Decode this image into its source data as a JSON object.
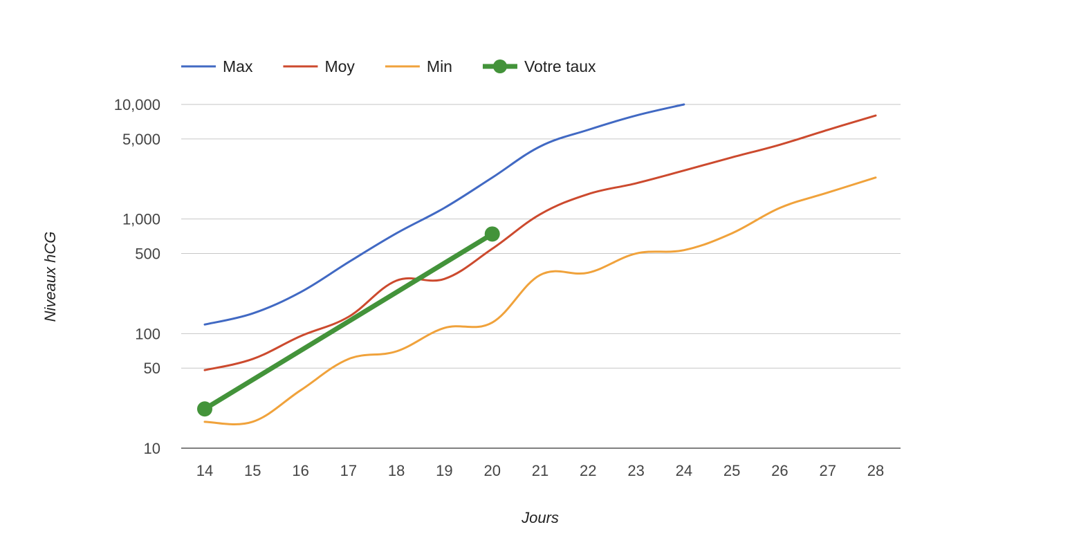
{
  "chart_data": {
    "type": "line",
    "xlabel": "Jours",
    "ylabel": "Niveaux hCG",
    "yscale": "log",
    "ylim": [
      10,
      10000
    ],
    "grid": true,
    "legend_position": "top-left",
    "x": [
      14,
      15,
      16,
      17,
      18,
      19,
      20,
      21,
      22,
      23,
      24,
      25,
      26,
      27,
      28
    ],
    "x_tick_labels": [
      "14",
      "15",
      "16",
      "17",
      "18",
      "19",
      "20",
      "21",
      "22",
      "23",
      "24",
      "25",
      "26",
      "27",
      "28"
    ],
    "y_ticks": [
      10,
      50,
      100,
      500,
      1000,
      5000,
      10000
    ],
    "y_tick_labels": [
      "10",
      "50",
      "100",
      "500",
      "1,000",
      "5,000",
      "10,000"
    ],
    "series": [
      {
        "name": "Max",
        "color": "#4169c3",
        "markers": false,
        "line_width": 3,
        "x": [
          14,
          15,
          16,
          17,
          18,
          19,
          20,
          21,
          22,
          23,
          24
        ],
        "values": [
          120,
          150,
          230,
          420,
          750,
          1250,
          2300,
          4300,
          6000,
          8000,
          10000
        ]
      },
      {
        "name": "Moy",
        "color": "#cc4a2e",
        "markers": false,
        "line_width": 3,
        "x": [
          14,
          15,
          16,
          17,
          18,
          19,
          20,
          21,
          22,
          23,
          24,
          25,
          26,
          27,
          28
        ],
        "values": [
          48,
          60,
          95,
          140,
          290,
          300,
          550,
          1100,
          1650,
          2050,
          2650,
          3450,
          4450,
          6000,
          8000
        ]
      },
      {
        "name": "Min",
        "color": "#f0a23b",
        "markers": false,
        "line_width": 3,
        "x": [
          14,
          15,
          16,
          17,
          18,
          19,
          20,
          21,
          22,
          23,
          24,
          25,
          26,
          27,
          28
        ],
        "values": [
          17,
          17,
          32,
          60,
          70,
          112,
          125,
          325,
          340,
          500,
          535,
          750,
          1250,
          1700,
          2300
        ]
      },
      {
        "name": "Votre taux",
        "color": "#43933a",
        "markers": true,
        "line_width": 7,
        "x": [
          14,
          20
        ],
        "values": [
          22,
          740
        ]
      }
    ]
  }
}
